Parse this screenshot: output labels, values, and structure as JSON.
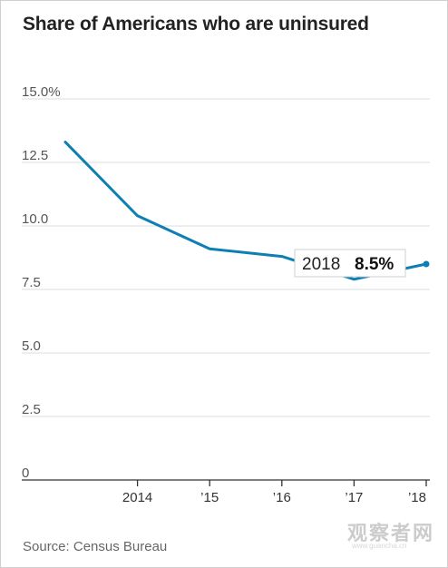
{
  "chart_data": {
    "type": "line",
    "title": "Share of Americans who are uninsured",
    "source": "Source: Census Bureau",
    "y_tick_labels": [
      "15.0%",
      "12.5",
      "10.0",
      "7.5",
      "5.0",
      "2.5",
      "0"
    ],
    "y_ticks": [
      15,
      12.5,
      10,
      7.5,
      5,
      2.5,
      0
    ],
    "ylim": [
      0,
      15
    ],
    "x_tick_labels": [
      "2014",
      "’15",
      "’16",
      "’17",
      "’18"
    ],
    "x_ticks": [
      2014,
      2015,
      2016,
      2017,
      2018
    ],
    "xlim": [
      2013,
      2018
    ],
    "grid": true,
    "series": [
      {
        "color": "#0d7fb3",
        "x": [
          2013,
          2014,
          2015,
          2016,
          2017,
          2018
        ],
        "values": [
          13.3,
          10.4,
          9.1,
          8.8,
          7.9,
          8.5
        ]
      }
    ],
    "tooltip": {
      "year": "2018",
      "value": "8.5%"
    }
  },
  "watermark": {
    "text": "观察者网",
    "url": "www.guancha.cn"
  }
}
